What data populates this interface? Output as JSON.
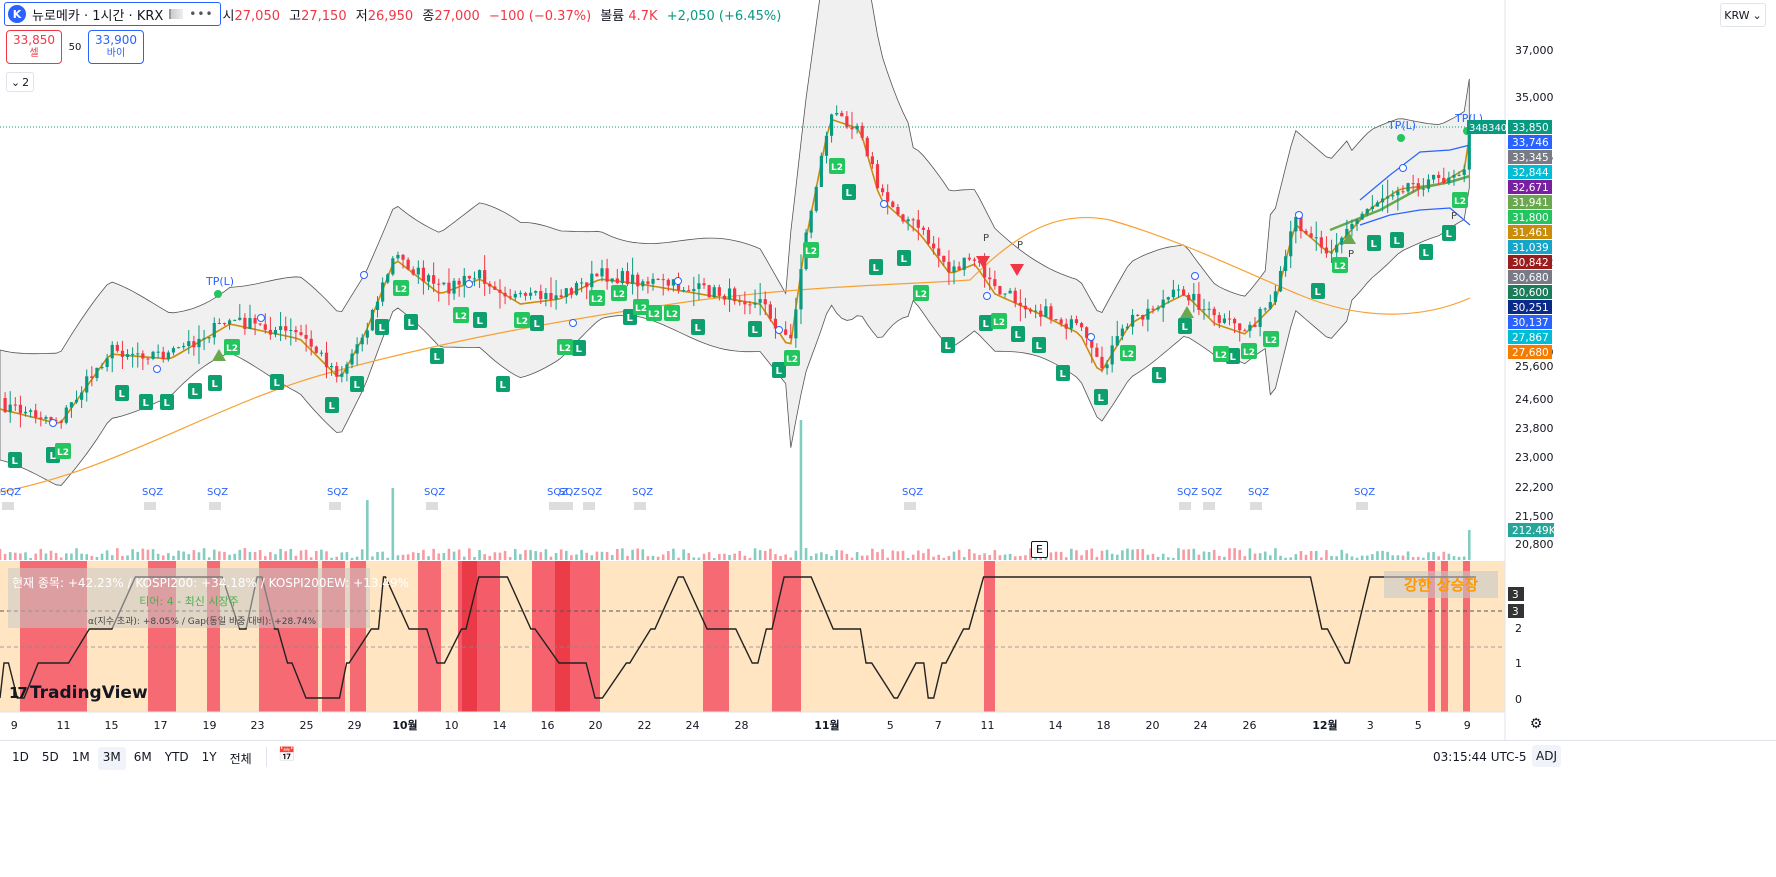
{
  "header": {
    "symbol_logo": "K",
    "symbol_title": "뉴로메카 · 1시간 · KRX",
    "ohlc": [
      {
        "label": "시",
        "value": "27,050"
      },
      {
        "label": "고",
        "value": "27,150"
      },
      {
        "label": "저",
        "value": "26,950"
      },
      {
        "label": "종",
        "value": "27,000"
      }
    ],
    "change": "−100 (−0.37%)",
    "volume_label": "볼륨",
    "volume_value": "4.7K",
    "extra_change": "+2,050 (+6.45%)"
  },
  "trade": {
    "sell_price": "33,850",
    "sell_label": "셀",
    "spread": "50",
    "buy_price": "33,900",
    "buy_label": "바이"
  },
  "indicators_collapsed_count": "2",
  "currency": "KRW",
  "colors": {
    "up": "#089981",
    "down": "#f23645",
    "accent": "#2962ff",
    "bb_fill": "#e9e9e9",
    "ma_orange": "#f7a133",
    "ma_dark": "#c98d0a",
    "band_orange": "#ffe5c1",
    "band_red": "#f55c6a"
  },
  "price_axis": {
    "ticks": [
      "37,000",
      "35,000",
      "33,345",
      "30,842",
      "27,680",
      "25,600",
      "24,600",
      "23,800",
      "23,000",
      "22,200",
      "21,500",
      "20,800"
    ],
    "badges": [
      {
        "text": "33,850",
        "color": "#089981"
      },
      {
        "text": "33,746",
        "color": "#2962ff"
      },
      {
        "text": "33,345",
        "color": "#787b86"
      },
      {
        "text": "32,844",
        "color": "#00bcd4"
      },
      {
        "text": "32,671",
        "color": "#7b1fa2"
      },
      {
        "text": "31,941",
        "color": "#6aa84f"
      },
      {
        "text": "31,800",
        "color": "#22c55e"
      },
      {
        "text": "31,461",
        "color": "#c98d0a"
      },
      {
        "text": "31,039",
        "color": "#14a5c9"
      },
      {
        "text": "30,842",
        "color": "#9b1c1c"
      },
      {
        "text": "30,680",
        "color": "#787b86"
      },
      {
        "text": "30,600",
        "color": "#1b7c5a"
      },
      {
        "text": "30,251",
        "color": "#0a2a8a"
      },
      {
        "text": "30,137",
        "color": "#2962ff"
      },
      {
        "text": "27,867",
        "color": "#00bcd4"
      },
      {
        "text": "27,680",
        "color": "#f57c00"
      }
    ],
    "count_badge": "348340",
    "volume_badge": "212.49K"
  },
  "panel": {
    "ticks": [
      "2",
      "1",
      "0"
    ],
    "badges": [
      "3",
      "3"
    ],
    "info_line1": "현재 종목: +42.23% / KOSPI200: +34.18% / KOSPI200EW: +13.49%",
    "info_line2": "티어: 4 - 최신 시장주",
    "info_line3": "α(지수 초과): +8.05% / Gap(동일 비중 대비): +28.74%",
    "strong_label": "강한 상승장"
  },
  "chart_annotations": {
    "tp_label": "TP(L)",
    "long_label": "L",
    "long2_label": "L2",
    "p_label": "P",
    "squeeze_label": "SQZ",
    "event_label": "E"
  },
  "time_axis": {
    "labels": [
      {
        "text": "9",
        "major": false
      },
      {
        "text": "11",
        "major": false
      },
      {
        "text": "15",
        "major": false
      },
      {
        "text": "17",
        "major": false
      },
      {
        "text": "19",
        "major": false
      },
      {
        "text": "23",
        "major": false
      },
      {
        "text": "25",
        "major": false
      },
      {
        "text": "29",
        "major": false
      },
      {
        "text": "10월",
        "major": true
      },
      {
        "text": "10",
        "major": false
      },
      {
        "text": "14",
        "major": false
      },
      {
        "text": "16",
        "major": false
      },
      {
        "text": "20",
        "major": false
      },
      {
        "text": "22",
        "major": false
      },
      {
        "text": "24",
        "major": false
      },
      {
        "text": "28",
        "major": false
      },
      {
        "text": "11월",
        "major": true
      },
      {
        "text": "5",
        "major": false
      },
      {
        "text": "7",
        "major": false
      },
      {
        "text": "11",
        "major": false
      },
      {
        "text": "14",
        "major": false
      },
      {
        "text": "18",
        "major": false
      },
      {
        "text": "20",
        "major": false
      },
      {
        "text": "24",
        "major": false
      },
      {
        "text": "26",
        "major": false
      },
      {
        "text": "12월",
        "major": true
      },
      {
        "text": "3",
        "major": false
      },
      {
        "text": "5",
        "major": false
      },
      {
        "text": "9",
        "major": false
      }
    ]
  },
  "brand": "TradingView",
  "bottom": {
    "ranges": [
      {
        "label": "1D"
      },
      {
        "label": "5D"
      },
      {
        "label": "1M"
      },
      {
        "label": "3M",
        "active": true
      },
      {
        "label": "6M"
      },
      {
        "label": "YTD"
      },
      {
        "label": "1Y"
      },
      {
        "label": "전체"
      }
    ],
    "time": "03:15:44 UTC-5",
    "adj": "ADJ"
  }
}
